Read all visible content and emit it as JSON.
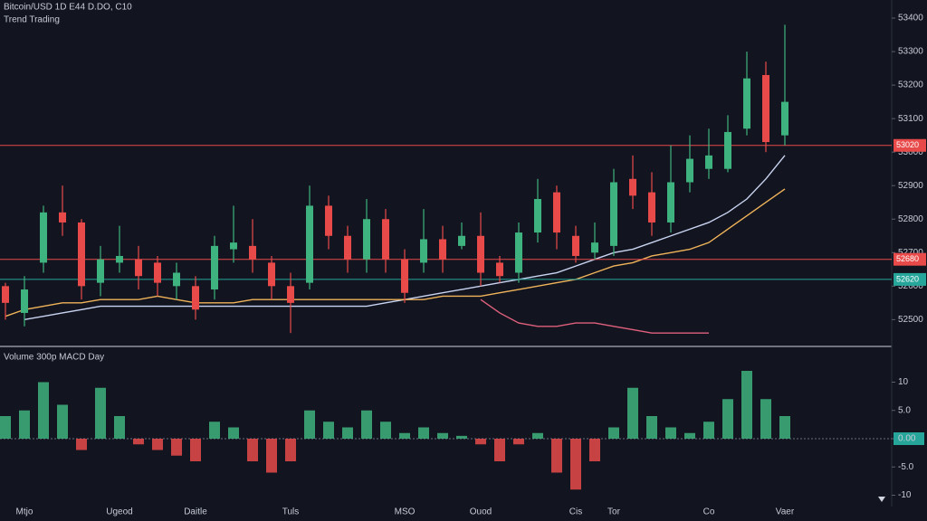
{
  "chart_data": [
    {
      "type": "candlestick",
      "title": "Bitcoin/USD 1D E44 D.DO, C10",
      "subtitle": "Trend Trading",
      "categories": [
        null,
        "Mtjo",
        null,
        null,
        null,
        null,
        "Ugeod",
        null,
        null,
        null,
        "Daitle",
        null,
        null,
        null,
        null,
        "Tuls",
        null,
        null,
        null,
        null,
        null,
        "MSO",
        null,
        null,
        null,
        "Ouod",
        null,
        null,
        null,
        null,
        "Cis",
        null,
        "Tor",
        null,
        null,
        null,
        null,
        "Co",
        null,
        null,
        null,
        "Vaer"
      ],
      "open": [
        52600,
        52520,
        52670,
        52820,
        52790,
        52610,
        52670,
        52680,
        52670,
        52600,
        52600,
        52590,
        52710,
        52720,
        52670,
        52600,
        52610,
        52840,
        52750,
        52680,
        52800,
        52680,
        52670,
        52740,
        52720,
        52750,
        52670,
        52640,
        52760,
        52880,
        52750,
        52700,
        52720,
        52920,
        52880,
        52790,
        52910,
        52950,
        52950,
        53070,
        53230,
        53050
      ],
      "close": [
        52550,
        52590,
        52820,
        52790,
        52600,
        52680,
        52690,
        52630,
        52610,
        52640,
        52530,
        52720,
        52730,
        52680,
        52600,
        52550,
        52840,
        52750,
        52680,
        52800,
        52680,
        52580,
        52740,
        52680,
        52750,
        52640,
        52630,
        52760,
        52860,
        52760,
        52690,
        52730,
        52910,
        52870,
        52790,
        52910,
        52980,
        52990,
        53060,
        53220,
        53030,
        53150
      ],
      "high": [
        52610,
        52630,
        52840,
        52900,
        52800,
        52720,
        52780,
        52720,
        52690,
        52670,
        52630,
        52750,
        52840,
        52800,
        52690,
        52640,
        52900,
        52870,
        52780,
        52860,
        52830,
        52710,
        52830,
        52780,
        52790,
        52820,
        52690,
        52790,
        52920,
        52900,
        52780,
        52790,
        52950,
        52990,
        52940,
        53020,
        53050,
        53070,
        53110,
        53300,
        53270,
        53380
      ],
      "low": [
        52500,
        52480,
        52640,
        52750,
        52560,
        52570,
        52640,
        52590,
        52570,
        52560,
        52500,
        52560,
        52670,
        52640,
        52560,
        52460,
        52590,
        52710,
        52640,
        52640,
        52640,
        52550,
        52640,
        52640,
        52710,
        52600,
        52610,
        52610,
        52730,
        52710,
        52670,
        52680,
        52690,
        52830,
        52750,
        52760,
        52880,
        52920,
        52940,
        53050,
        53000,
        53020
      ],
      "up_color": "#3fb37f",
      "down_color": "#e84a4a",
      "lines": [
        {
          "color": "#c9d4f2",
          "values": [
            null,
            52500,
            52510,
            52520,
            52530,
            52540,
            52540,
            52540,
            52540,
            52540,
            52540,
            52540,
            52540,
            52540,
            52540,
            52540,
            52540,
            52540,
            52540,
            52540,
            52550,
            52560,
            52570,
            52580,
            52590,
            52600,
            52610,
            52620,
            52630,
            52640,
            52660,
            52680,
            52700,
            52710,
            52730,
            52750,
            52770,
            52790,
            52820,
            52860,
            52920,
            52990
          ]
        },
        {
          "color": "#f0b35a",
          "values": [
            52510,
            52530,
            52540,
            52550,
            52550,
            52560,
            52560,
            52560,
            52570,
            52560,
            52550,
            52550,
            52550,
            52560,
            52560,
            52560,
            52560,
            52560,
            52560,
            52560,
            52560,
            52560,
            52560,
            52570,
            52570,
            52570,
            52580,
            52590,
            52600,
            52610,
            52620,
            52640,
            52660,
            52670,
            52690,
            52700,
            52710,
            52730,
            52770,
            52810,
            52850,
            52890
          ]
        },
        {
          "color": "#e0607e",
          "values": [
            null,
            null,
            null,
            null,
            null,
            null,
            null,
            null,
            null,
            null,
            null,
            null,
            null,
            null,
            null,
            null,
            null,
            null,
            null,
            null,
            null,
            null,
            null,
            null,
            null,
            52560,
            52520,
            52490,
            52480,
            52480,
            52490,
            52490,
            52480,
            52470,
            52460,
            52460,
            52460,
            52460,
            null,
            null,
            null,
            null
          ]
        }
      ],
      "levels": [
        {
          "value": 53020,
          "color": "#e84a4a"
        },
        {
          "value": 52680,
          "color": "#e84a4a"
        },
        {
          "value": 52620,
          "color": "#26a69a"
        }
      ],
      "ylim": [
        52420,
        53454
      ],
      "yticks": [
        53400,
        53300,
        53200,
        53100,
        53000,
        52900,
        52800,
        52700,
        52600,
        52500
      ],
      "grid": false
    },
    {
      "type": "bar",
      "title": "Volume 300p MACD Day",
      "values": [
        4,
        5,
        10,
        6,
        -2,
        9,
        4,
        -1,
        -2,
        -3,
        -4,
        3,
        2,
        -4,
        -6,
        -4,
        5,
        3,
        2,
        5,
        3,
        1,
        2,
        1,
        0.5,
        -1,
        -4,
        -1,
        1,
        -6,
        -9,
        -4,
        2,
        9,
        4,
        2,
        1,
        3,
        7,
        12,
        7,
        4
      ],
      "up_color": "#3fb37f",
      "down_color": "#e84a4a",
      "ylim": [
        -12,
        16
      ],
      "yticks": [
        10,
        {
          "value": 5,
          "label": "5.0"
        },
        {
          "value": 0,
          "label": "0.00"
        },
        {
          "value": -5,
          "label": "-5.0"
        },
        -10
      ]
    }
  ]
}
